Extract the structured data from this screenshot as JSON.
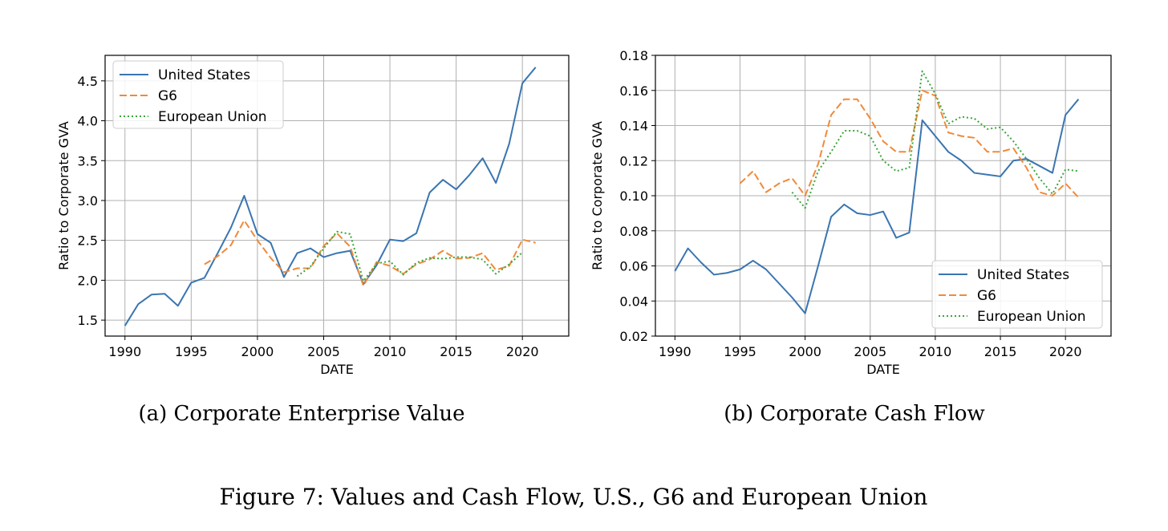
{
  "chart_data": [
    {
      "type": "line",
      "caption": "(a) Corporate Enterprise Value",
      "xlabel": "DATE",
      "ylabel": "Ratio to Corporate GVA",
      "xlim": [
        1988.5,
        2023.5
      ],
      "ylim": [
        1.3,
        4.82
      ],
      "xticks": [
        1990,
        1995,
        2000,
        2005,
        2010,
        2015,
        2020
      ],
      "yticks": [
        1.5,
        2.0,
        2.5,
        3.0,
        3.5,
        4.0,
        4.5
      ],
      "ytick_labels": [
        "1.5",
        "2.0",
        "2.5",
        "3.0",
        "3.5",
        "4.0",
        "4.5"
      ],
      "grid": true,
      "legend_position": "top-left",
      "series": [
        {
          "name": "United States",
          "style": "solid",
          "color": "#3a75b0",
          "x": [
            1990,
            1991,
            1992,
            1993,
            1994,
            1995,
            1996,
            1997,
            1998,
            1999,
            2000,
            2001,
            2002,
            2003,
            2004,
            2005,
            2006,
            2007,
            2008,
            2009,
            2010,
            2011,
            2012,
            2013,
            2014,
            2015,
            2016,
            2017,
            2018,
            2019,
            2020,
            2021
          ],
          "y": [
            1.43,
            1.7,
            1.82,
            1.83,
            1.68,
            1.97,
            2.03,
            2.34,
            2.66,
            3.06,
            2.58,
            2.47,
            2.04,
            2.34,
            2.4,
            2.29,
            2.34,
            2.37,
            1.95,
            2.19,
            2.51,
            2.49,
            2.59,
            3.1,
            3.26,
            3.14,
            3.32,
            3.53,
            3.22,
            3.71,
            4.47,
            4.67
          ]
        },
        {
          "name": "G6",
          "style": "dashed",
          "color": "#f08a3a",
          "x": [
            1996,
            1997,
            1998,
            1999,
            2000,
            2001,
            2002,
            2003,
            2004,
            2005,
            2006,
            2007,
            2008,
            2009,
            2010,
            2011,
            2012,
            2013,
            2014,
            2015,
            2016,
            2017,
            2018,
            2019,
            2020,
            2021
          ],
          "y": [
            2.2,
            2.3,
            2.44,
            2.75,
            2.5,
            2.28,
            2.1,
            2.15,
            2.15,
            2.43,
            2.59,
            2.42,
            1.93,
            2.23,
            2.18,
            2.08,
            2.2,
            2.26,
            2.37,
            2.27,
            2.28,
            2.34,
            2.13,
            2.18,
            2.51,
            2.47
          ]
        },
        {
          "name": "European Union",
          "style": "dotted",
          "color": "#3aa63a",
          "x": [
            2003,
            2004,
            2005,
            2006,
            2007,
            2008,
            2009,
            2010,
            2011,
            2012,
            2013,
            2014,
            2015,
            2016,
            2017,
            2018,
            2019,
            2020
          ],
          "y": [
            2.05,
            2.17,
            2.4,
            2.61,
            2.58,
            1.99,
            2.21,
            2.24,
            2.07,
            2.22,
            2.28,
            2.27,
            2.29,
            2.29,
            2.26,
            2.08,
            2.2,
            2.35
          ]
        }
      ]
    },
    {
      "type": "line",
      "caption": "(b) Corporate Cash Flow",
      "xlabel": "DATE",
      "ylabel": "Ratio to Corporate GVA",
      "xlim": [
        1988.5,
        2023.5
      ],
      "ylim": [
        0.02,
        0.18
      ],
      "xticks": [
        1990,
        1995,
        2000,
        2005,
        2010,
        2015,
        2020
      ],
      "yticks": [
        0.02,
        0.04,
        0.06,
        0.08,
        0.1,
        0.12,
        0.14,
        0.16,
        0.18
      ],
      "ytick_labels": [
        "0.02",
        "0.04",
        "0.06",
        "0.08",
        "0.10",
        "0.12",
        "0.14",
        "0.16",
        "0.18"
      ],
      "grid": true,
      "legend_position": "bottom-right",
      "series": [
        {
          "name": "United States",
          "style": "solid",
          "color": "#3a75b0",
          "x": [
            1990,
            1991,
            1992,
            1993,
            1994,
            1995,
            1996,
            1997,
            1998,
            1999,
            2000,
            2001,
            2002,
            2003,
            2004,
            2005,
            2006,
            2007,
            2008,
            2009,
            2010,
            2011,
            2012,
            2013,
            2014,
            2015,
            2016,
            2017,
            2018,
            2019,
            2020,
            2021
          ],
          "y": [
            0.057,
            0.07,
            0.062,
            0.055,
            0.056,
            0.058,
            0.063,
            0.058,
            0.05,
            0.042,
            0.033,
            0.06,
            0.088,
            0.095,
            0.09,
            0.089,
            0.091,
            0.076,
            0.079,
            0.143,
            0.134,
            0.125,
            0.12,
            0.113,
            0.112,
            0.111,
            0.12,
            0.121,
            0.117,
            0.113,
            0.146,
            0.155
          ]
        },
        {
          "name": "G6",
          "style": "dashed",
          "color": "#f08a3a",
          "x": [
            1995,
            1996,
            1997,
            1998,
            1999,
            2000,
            2001,
            2002,
            2003,
            2004,
            2005,
            2006,
            2007,
            2008,
            2009,
            2010,
            2011,
            2012,
            2013,
            2014,
            2015,
            2016,
            2017,
            2018,
            2019,
            2020,
            2021
          ],
          "y": [
            0.107,
            0.114,
            0.102,
            0.107,
            0.11,
            0.1,
            0.118,
            0.146,
            0.155,
            0.155,
            0.144,
            0.131,
            0.125,
            0.125,
            0.16,
            0.157,
            0.136,
            0.134,
            0.133,
            0.125,
            0.125,
            0.127,
            0.116,
            0.102,
            0.1,
            0.107,
            0.099
          ]
        },
        {
          "name": "European Union",
          "style": "dotted",
          "color": "#3aa63a",
          "x": [
            1999,
            2000,
            2001,
            2002,
            2003,
            2004,
            2005,
            2006,
            2007,
            2008,
            2009,
            2010,
            2011,
            2012,
            2013,
            2014,
            2015,
            2016,
            2017,
            2018,
            2019,
            2020,
            2021
          ],
          "y": [
            0.102,
            0.093,
            0.114,
            0.125,
            0.137,
            0.137,
            0.134,
            0.12,
            0.114,
            0.116,
            0.171,
            0.158,
            0.141,
            0.145,
            0.144,
            0.138,
            0.139,
            0.131,
            0.121,
            0.11,
            0.101,
            0.115,
            0.114
          ]
        }
      ]
    }
  ],
  "figure_caption": "Figure 7: Values and Cash Flow, U.S., G6 and European Union",
  "colors": {
    "united_states": "#3a75b0",
    "g6": "#f08a3a",
    "european_union": "#3aa63a",
    "grid": "#b0b0b0"
  }
}
